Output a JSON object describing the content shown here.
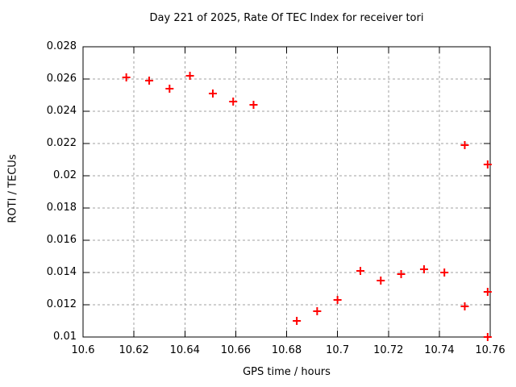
{
  "page": {
    "background": "#ffffff",
    "text_color": "#000000"
  },
  "chart_data": {
    "type": "scatter",
    "title": "Day 221 of 2025, Rate Of TEC Index for receiver tori",
    "xlabel": "GPS time / hours",
    "ylabel": "ROTI / TECUs",
    "xlim": [
      10.6,
      10.76
    ],
    "ylim": [
      0.01,
      0.028
    ],
    "xticks": {
      "values": [
        10.6,
        10.62,
        10.64,
        10.66,
        10.68,
        10.7,
        10.72,
        10.74,
        10.76
      ],
      "labels": [
        "10.6",
        "10.62",
        "10.64",
        "10.66",
        "10.68",
        "10.7",
        "10.72",
        "10.74",
        "10.76"
      ]
    },
    "yticks": {
      "values": [
        0.01,
        0.012,
        0.014,
        0.016,
        0.018,
        0.02,
        0.022,
        0.024,
        0.026,
        0.028
      ],
      "labels": [
        "0.01",
        "0.012",
        "0.014",
        "0.016",
        "0.018",
        "0.02",
        "0.022",
        "0.024",
        "0.026",
        "0.028"
      ]
    },
    "grid": {
      "show": true,
      "style": "dashed",
      "color": "#a0a0a0"
    },
    "legend": "none",
    "border_color": "#000000",
    "marker": {
      "shape": "plus",
      "color": "#ff0000",
      "size": 10,
      "stroke_width": 2
    },
    "series": [
      {
        "name": "ROTI",
        "points": [
          [
            10.617,
            0.0261
          ],
          [
            10.626,
            0.0259
          ],
          [
            10.634,
            0.0254
          ],
          [
            10.642,
            0.0262
          ],
          [
            10.651,
            0.0251
          ],
          [
            10.659,
            0.0246
          ],
          [
            10.667,
            0.0244
          ],
          [
            10.684,
            0.011
          ],
          [
            10.692,
            0.0116
          ],
          [
            10.7,
            0.0123
          ],
          [
            10.709,
            0.0141
          ],
          [
            10.717,
            0.0135
          ],
          [
            10.725,
            0.0139
          ],
          [
            10.734,
            0.0142
          ],
          [
            10.742,
            0.014
          ],
          [
            10.75,
            0.0219
          ],
          [
            10.75,
            0.0119
          ],
          [
            10.759,
            0.0207
          ],
          [
            10.759,
            0.0128
          ],
          [
            10.759,
            0.01
          ]
        ]
      }
    ]
  }
}
